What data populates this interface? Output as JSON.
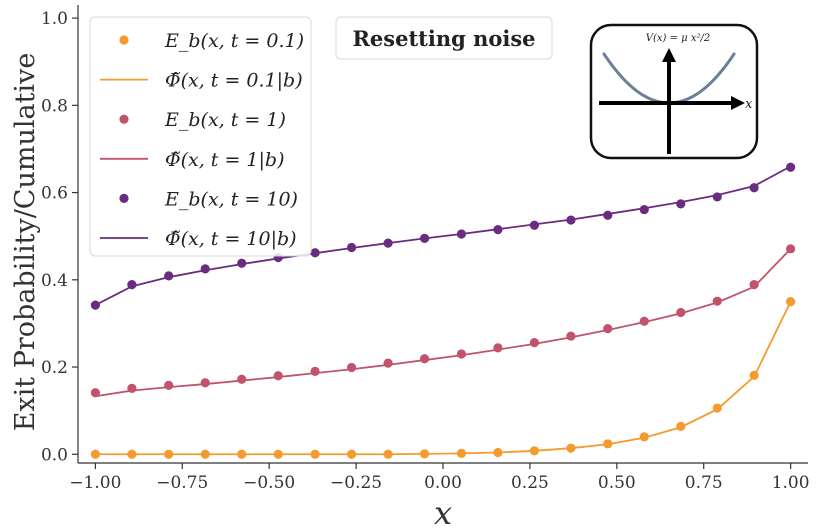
{
  "chart_data": {
    "type": "scatter+line",
    "title": "Resetting noise",
    "xlabel": "x",
    "ylabel": "Exit Probability/Cumulative",
    "xlim": [
      -1.05,
      1.05
    ],
    "ylim": [
      -0.02,
      1.03
    ],
    "xticks": [
      -1.0,
      -0.75,
      -0.5,
      -0.25,
      0.0,
      0.25,
      0.5,
      0.75,
      1.0
    ],
    "xtick_labels": [
      "−1.00",
      "−0.75",
      "−0.50",
      "−0.25",
      "0.00",
      "0.25",
      "0.50",
      "0.75",
      "1.00"
    ],
    "yticks": [
      0.0,
      0.2,
      0.4,
      0.6,
      0.8,
      1.0
    ],
    "ytick_labels": [
      "0.0",
      "0.2",
      "0.4",
      "0.6",
      "0.8",
      "1.0"
    ],
    "x_points": [
      -1.0,
      -0.895,
      -0.789,
      -0.684,
      -0.579,
      -0.474,
      -0.368,
      -0.263,
      -0.158,
      -0.053,
      0.053,
      0.158,
      0.263,
      0.368,
      0.474,
      0.579,
      0.684,
      0.789,
      0.895,
      1.0
    ],
    "series": [
      {
        "name": "E_b(x, t=0.1)",
        "curve_name": "Φ̃(x, t=0.1|b)",
        "color": "#f39b2f",
        "points": [
          0.0,
          0.0,
          0.0,
          0.0,
          0.0,
          0.0,
          0.0,
          0.0,
          0.0,
          0.001,
          0.002,
          0.004,
          0.008,
          0.014,
          0.024,
          0.04,
          0.064,
          0.106,
          0.181,
          0.35
        ],
        "curve": [
          0.0,
          0.0,
          0.0,
          0.0,
          0.0,
          0.0,
          0.0,
          0.0,
          0.0,
          0.001,
          0.002,
          0.004,
          0.008,
          0.014,
          0.023,
          0.038,
          0.062,
          0.103,
          0.178,
          0.35
        ]
      },
      {
        "name": "E_b(x, t=1)",
        "curve_name": "Φ̃(x, t=1|b)",
        "color": "#c1536d",
        "points": [
          0.141,
          0.151,
          0.158,
          0.164,
          0.172,
          0.18,
          0.19,
          0.199,
          0.209,
          0.219,
          0.23,
          0.244,
          0.256,
          0.271,
          0.288,
          0.305,
          0.325,
          0.351,
          0.389,
          0.471
        ],
        "curve": [
          0.133,
          0.146,
          0.154,
          0.161,
          0.169,
          0.177,
          0.186,
          0.195,
          0.205,
          0.216,
          0.227,
          0.24,
          0.253,
          0.268,
          0.285,
          0.303,
          0.323,
          0.348,
          0.384,
          0.471
        ]
      },
      {
        "name": "E_b(x, t=10)",
        "curve_name": "Φ̃(x, t=10|b)",
        "color": "#6a2c7f",
        "points": [
          0.342,
          0.389,
          0.409,
          0.425,
          0.438,
          0.451,
          0.462,
          0.474,
          0.484,
          0.495,
          0.505,
          0.515,
          0.525,
          0.537,
          0.548,
          0.561,
          0.574,
          0.59,
          0.611,
          0.658
        ],
        "curve": [
          0.342,
          0.385,
          0.406,
          0.422,
          0.436,
          0.449,
          0.461,
          0.473,
          0.484,
          0.495,
          0.505,
          0.516,
          0.527,
          0.538,
          0.551,
          0.564,
          0.578,
          0.594,
          0.615,
          0.66
        ]
      }
    ],
    "legend": {
      "position": "upper-left",
      "entries": [
        {
          "kind": "marker",
          "label": "E_b(x, t = 0.1)",
          "color": "#f39b2f"
        },
        {
          "kind": "line",
          "label": "Φ̃(x, t = 0.1|b)",
          "color": "#f39b2f"
        },
        {
          "kind": "marker",
          "label": "E_b(x, t = 1)",
          "color": "#c1536d"
        },
        {
          "kind": "line",
          "label": "Φ̃(x, t = 1|b)",
          "color": "#c1536d"
        },
        {
          "kind": "marker",
          "label": "E_b(x, t = 10)",
          "color": "#6a2c7f"
        },
        {
          "kind": "line",
          "label": "Φ̃(x, t = 10|b)",
          "color": "#6a2c7f"
        }
      ]
    },
    "inset": {
      "label": "V(x) = μ x²/2",
      "axis_label": "x",
      "curve_color": "#6c7f99"
    }
  }
}
